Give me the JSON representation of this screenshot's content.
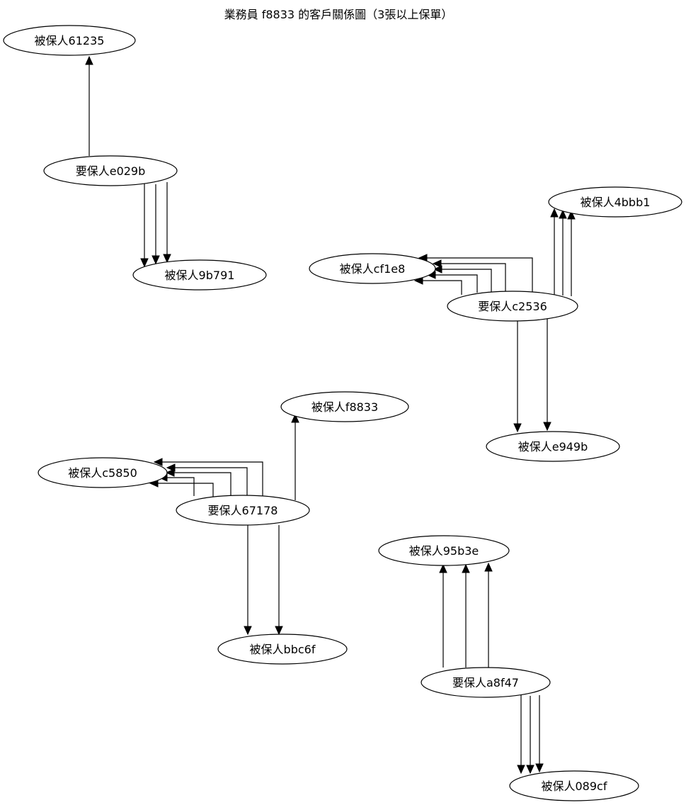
{
  "diagram": {
    "title": "業務員 f8833 的客戶關係圖（3張以上保單）",
    "nodes": {
      "n_61235": "被保人61235",
      "n_e029b": "要保人e029b",
      "n_9b791": "被保人9b791",
      "n_4bbb1": "被保人4bbb1",
      "n_cf1e8": "被保人cf1e8",
      "n_c2536": "要保人c2536",
      "n_e949b": "被保人e949b",
      "n_f8833": "被保人f8833",
      "n_c5850": "被保人c5850",
      "n_67178": "要保人67178",
      "n_bbc6f": "被保人bbc6f",
      "n_95b3e": "被保人95b3e",
      "n_a8f47": "要保人a8f47",
      "n_089cf": "被保人089cf"
    },
    "edges": [
      {
        "from": "n_e029b",
        "to": "n_61235"
      },
      {
        "from": "n_e029b",
        "to": "n_9b791"
      },
      {
        "from": "n_e029b",
        "to": "n_9b791"
      },
      {
        "from": "n_e029b",
        "to": "n_9b791"
      },
      {
        "from": "n_c2536",
        "to": "n_cf1e8"
      },
      {
        "from": "n_c2536",
        "to": "n_cf1e8"
      },
      {
        "from": "n_c2536",
        "to": "n_cf1e8"
      },
      {
        "from": "n_c2536",
        "to": "n_cf1e8"
      },
      {
        "from": "n_c2536",
        "to": "n_cf1e8"
      },
      {
        "from": "n_c2536",
        "to": "n_4bbb1"
      },
      {
        "from": "n_c2536",
        "to": "n_4bbb1"
      },
      {
        "from": "n_c2536",
        "to": "n_4bbb1"
      },
      {
        "from": "n_c2536",
        "to": "n_e949b"
      },
      {
        "from": "n_c2536",
        "to": "n_e949b"
      },
      {
        "from": "n_67178",
        "to": "n_c5850"
      },
      {
        "from": "n_67178",
        "to": "n_c5850"
      },
      {
        "from": "n_67178",
        "to": "n_c5850"
      },
      {
        "from": "n_67178",
        "to": "n_c5850"
      },
      {
        "from": "n_67178",
        "to": "n_c5850"
      },
      {
        "from": "n_67178",
        "to": "n_f8833"
      },
      {
        "from": "n_67178",
        "to": "n_bbc6f"
      },
      {
        "from": "n_67178",
        "to": "n_bbc6f"
      },
      {
        "from": "n_a8f47",
        "to": "n_95b3e"
      },
      {
        "from": "n_a8f47",
        "to": "n_95b3e"
      },
      {
        "from": "n_a8f47",
        "to": "n_95b3e"
      },
      {
        "from": "n_a8f47",
        "to": "n_089cf"
      },
      {
        "from": "n_a8f47",
        "to": "n_089cf"
      },
      {
        "from": "n_a8f47",
        "to": "n_089cf"
      }
    ]
  }
}
